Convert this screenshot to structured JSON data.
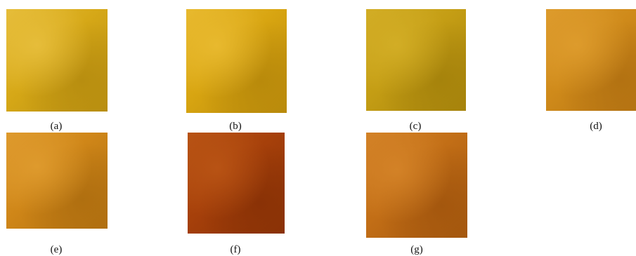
{
  "samples": [
    {
      "label": "(a)",
      "color": "#d6a817",
      "highlight": "#e6bd3a",
      "shade": "#b88e10"
    },
    {
      "label": "(b)",
      "color": "#d8a511",
      "highlight": "#e8b92e",
      "shade": "#b98a0b"
    },
    {
      "label": "(c)",
      "color": "#c49d14",
      "highlight": "#d2ad25",
      "shade": "#a6830c"
    },
    {
      "label": "(d)",
      "color": "#cf8a1a",
      "highlight": "#dd9b2c",
      "shade": "#b37212"
    },
    {
      "label": "(e)",
      "color": "#cf8618",
      "highlight": "#de9a2d",
      "shade": "#b06f10"
    },
    {
      "label": "(f)",
      "color": "#a6400a",
      "highlight": "#b85314",
      "shade": "#8a3206"
    },
    {
      "label": "(g)",
      "color": "#c26e16",
      "highlight": "#d38227",
      "shade": "#a4570e"
    }
  ]
}
